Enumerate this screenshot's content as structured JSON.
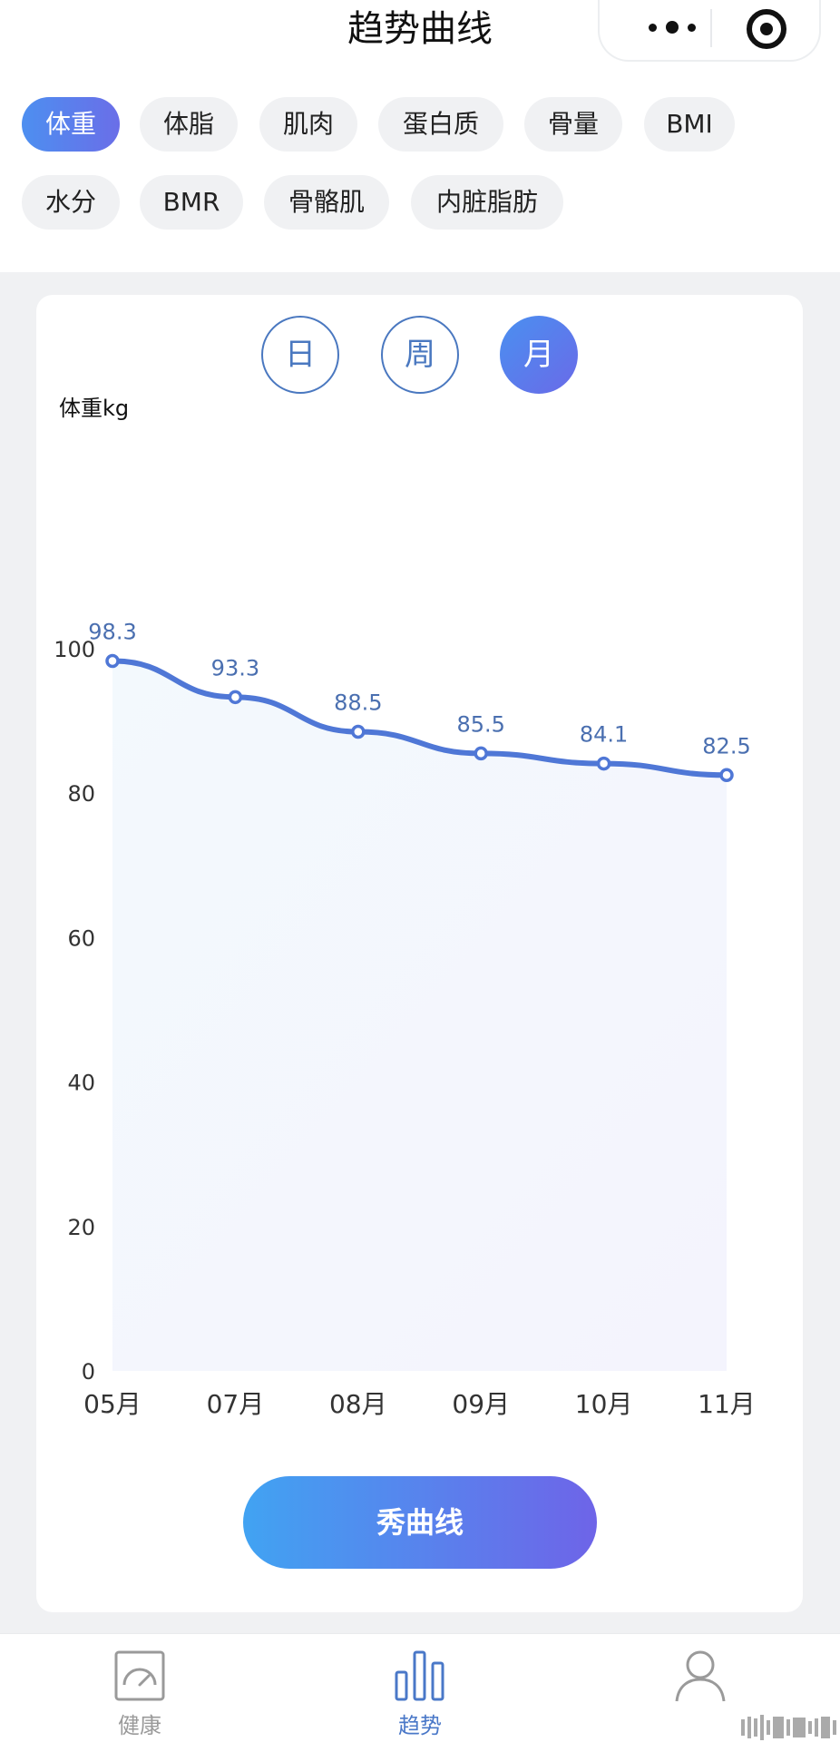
{
  "header": {
    "title": "趋势曲线"
  },
  "metric_tabs": [
    {
      "label": "体重",
      "active": true
    },
    {
      "label": "体脂",
      "active": false
    },
    {
      "label": "肌肉",
      "active": false
    },
    {
      "label": "蛋白质",
      "active": false
    },
    {
      "label": "骨量",
      "active": false
    },
    {
      "label": "BMI",
      "active": false
    },
    {
      "label": "水分",
      "active": false
    },
    {
      "label": "BMR",
      "active": false
    },
    {
      "label": "骨骼肌",
      "active": false
    },
    {
      "label": "内脏脂肪",
      "active": false
    }
  ],
  "period_tabs": [
    {
      "label": "日",
      "active": false
    },
    {
      "label": "周",
      "active": false
    },
    {
      "label": "月",
      "active": true
    }
  ],
  "chart_data": {
    "type": "area",
    "ylabel": "体重kg",
    "categories": [
      "05月",
      "07月",
      "08月",
      "09月",
      "10月",
      "11月"
    ],
    "series": [
      {
        "values": [
          98.3,
          93.3,
          88.5,
          85.5,
          84.1,
          82.5
        ]
      }
    ],
    "ylim": [
      0,
      100
    ],
    "yticks": [
      0,
      20,
      40,
      60,
      80,
      100
    ],
    "grid": false,
    "line_color": "#4f77d6",
    "value_label_color": "#4a6fb0"
  },
  "primary_action": {
    "label": "秀曲线"
  },
  "bottom_nav": [
    {
      "label": "健康",
      "icon": "gauge-icon",
      "active": false
    },
    {
      "label": "趋势",
      "icon": "bar-chart-icon",
      "active": true
    },
    {
      "label": "",
      "icon": "person-icon",
      "active": false
    }
  ],
  "colors": {
    "accent": "#4f77d6",
    "accent_gradient_end": "#6a6ae8",
    "inactive": "#9a9a9a"
  }
}
